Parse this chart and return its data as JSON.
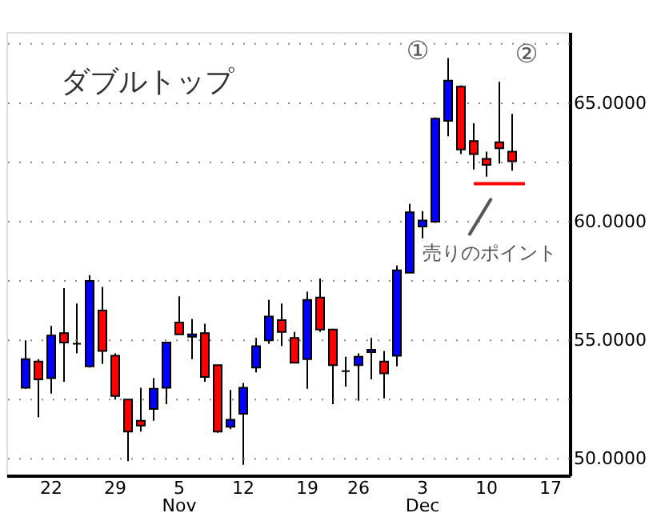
{
  "chart_data": {
    "type": "candlestick",
    "categories": [
      null,
      null,
      null,
      "22",
      null,
      null,
      null,
      null,
      "29",
      null,
      null,
      null,
      null,
      "5\nNov",
      null,
      null,
      null,
      null,
      "12",
      null,
      null,
      null,
      null,
      "19",
      null,
      null,
      null,
      "26",
      null,
      null,
      null,
      null,
      "3\nDec",
      null,
      null,
      null,
      null,
      "10",
      null,
      null,
      null,
      null,
      "17",
      null
    ],
    "ohlc": [
      null,
      [
        53.0,
        55.0,
        52.95,
        54.2
      ],
      [
        54.1,
        54.2,
        51.75,
        53.35
      ],
      [
        53.4,
        55.6,
        52.75,
        55.2
      ],
      [
        55.3,
        57.2,
        53.25,
        54.9
      ],
      [
        54.85,
        56.55,
        54.45,
        54.85
      ],
      [
        53.9,
        57.75,
        53.85,
        57.5
      ],
      [
        56.25,
        57.25,
        54.0,
        54.55
      ],
      [
        54.35,
        54.45,
        52.5,
        52.65
      ],
      [
        52.5,
        52.5,
        49.9,
        51.15
      ],
      [
        51.6,
        53.0,
        51.15,
        51.4
      ],
      [
        52.1,
        53.4,
        51.6,
        52.95
      ],
      [
        53.0,
        54.9,
        52.3,
        54.9
      ],
      [
        55.75,
        56.85,
        55.25,
        55.25
      ],
      [
        55.15,
        55.9,
        54.2,
        55.25
      ],
      [
        55.3,
        55.7,
        53.25,
        53.45
      ],
      [
        53.95,
        53.95,
        51.1,
        51.15
      ],
      [
        51.35,
        52.9,
        51.25,
        51.65
      ],
      [
        51.9,
        53.2,
        49.75,
        53.0
      ],
      [
        53.85,
        55.1,
        53.65,
        54.75
      ],
      [
        55.0,
        56.7,
        54.85,
        56.0
      ],
      [
        55.85,
        56.55,
        54.75,
        55.35
      ],
      [
        55.1,
        55.35,
        54.05,
        54.05
      ],
      [
        54.2,
        57.05,
        52.95,
        56.7
      ],
      [
        56.8,
        57.6,
        55.35,
        55.45
      ],
      [
        55.45,
        55.45,
        52.3,
        53.95
      ],
      [
        53.7,
        54.3,
        53.05,
        53.7
      ],
      [
        53.95,
        54.45,
        52.45,
        54.3
      ],
      [
        54.5,
        55.1,
        53.35,
        54.6
      ],
      [
        54.1,
        54.55,
        52.55,
        53.6
      ],
      [
        54.35,
        58.15,
        53.9,
        57.95
      ],
      [
        57.85,
        60.75,
        57.85,
        60.4
      ],
      [
        59.8,
        60.45,
        59.3,
        60.05
      ],
      [
        60.0,
        64.4,
        59.95,
        64.35
      ],
      [
        64.25,
        66.9,
        63.6,
        65.95
      ],
      [
        65.7,
        65.75,
        62.85,
        63.05
      ],
      [
        63.4,
        64.15,
        62.2,
        62.85
      ],
      [
        62.65,
        62.95,
        61.9,
        62.4
      ],
      [
        63.35,
        65.9,
        62.45,
        63.1
      ],
      [
        62.95,
        64.55,
        62.15,
        62.55
      ],
      null,
      null,
      null,
      null
    ],
    "colors": [
      null,
      "#0000ff",
      "#ff0000",
      "#0000ff",
      "#ff0000",
      "#000000",
      "#0000ff",
      "#ff0000",
      "#ff0000",
      "#ff0000",
      "#ff0000",
      "#0000ff",
      "#0000ff",
      "#ff0000",
      "#0000ff",
      "#ff0000",
      "#ff0000",
      "#0000ff",
      "#0000ff",
      "#0000ff",
      "#0000ff",
      "#ff0000",
      "#ff0000",
      "#0000ff",
      "#ff0000",
      "#ff0000",
      "#000000",
      "#0000ff",
      "#0000ff",
      "#ff0000",
      "#0000ff",
      "#0000ff",
      "#0000ff",
      "#0000ff",
      "#0000ff",
      "#ff0000",
      "#ff0000",
      "#ff0000",
      "#ff0000",
      "#ff0000",
      null,
      null,
      null,
      null
    ],
    "series": [
      {
        "type": "line",
        "color": "#ff0000",
        "values": [
          null,
          null,
          null,
          null,
          null,
          null,
          null,
          null,
          null,
          null,
          null,
          null,
          null,
          null,
          null,
          null,
          null,
          null,
          null,
          null,
          null,
          null,
          null,
          null,
          null,
          null,
          null,
          null,
          null,
          null,
          null,
          null,
          null,
          null,
          null,
          null,
          61.6,
          61.6,
          61.6,
          61.6,
          61.6,
          null,
          null,
          null
        ]
      }
    ],
    "ylim": [
      49.3,
      68.0
    ],
    "yticks": [
      {
        "value": 50,
        "label": "50.0000"
      },
      {
        "value": 52.5,
        "label": null
      },
      {
        "value": 55,
        "label": "55.0000"
      },
      {
        "value": 57.5,
        "label": null
      },
      {
        "value": 60,
        "label": "60.0000"
      },
      {
        "value": 62.5,
        "label": null
      },
      {
        "value": 65,
        "label": "65.0000"
      },
      {
        "value": 67.5,
        "label": null
      }
    ],
    "grid": "y",
    "annotations": [
      "ダブルトップ",
      "①",
      "②",
      "売りのポイント"
    ]
  }
}
